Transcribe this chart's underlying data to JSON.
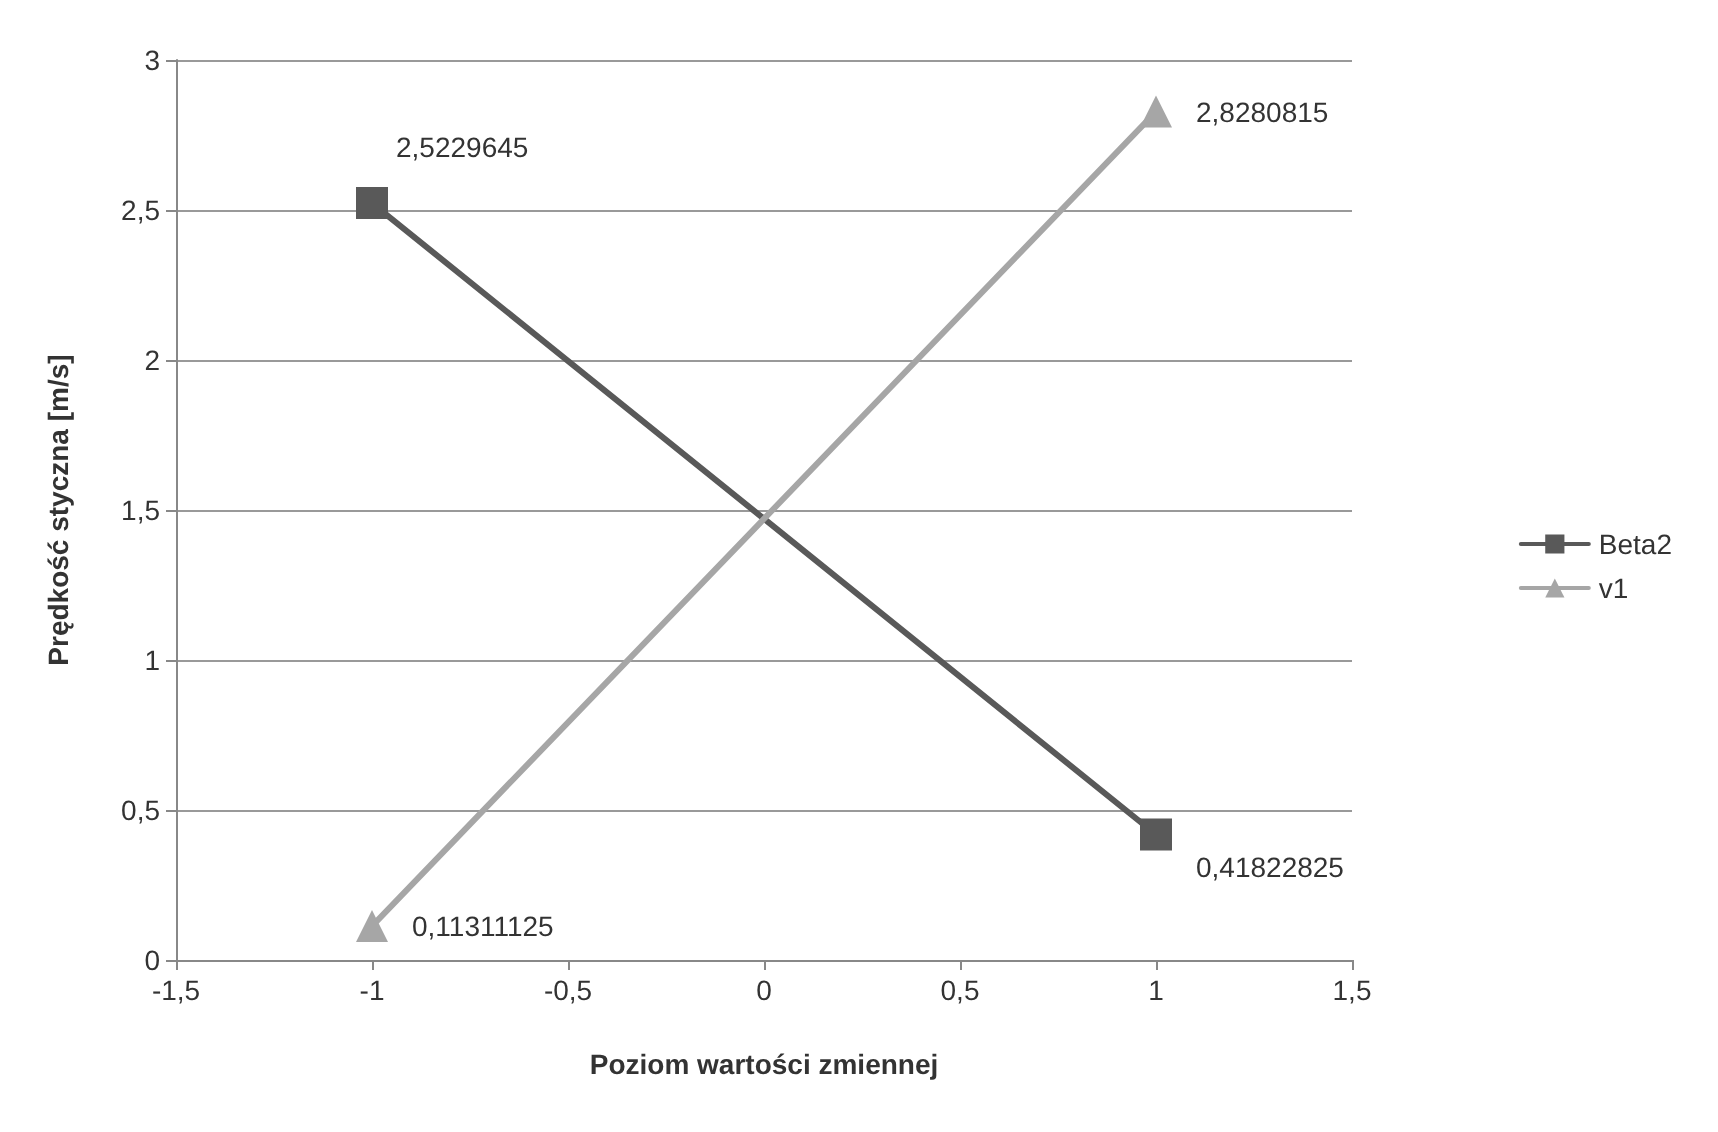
{
  "chart_data": {
    "type": "line",
    "xlabel": "Poziom wartości zmiennej",
    "ylabel": "Prędkość styczna [m/s]",
    "x": [
      -1,
      1
    ],
    "series": [
      {
        "name": "Beta2",
        "color": "#595959",
        "marker": "square",
        "values": [
          2.5229645,
          0.41822825
        ],
        "value_labels": [
          "2,5229645",
          "0,41822825"
        ]
      },
      {
        "name": "v1",
        "color": "#a6a6a6",
        "marker": "triangle",
        "values": [
          0.11311125,
          2.8280815
        ],
        "value_labels": [
          "0,11311125",
          "2,8280815"
        ]
      }
    ],
    "xlim": [
      -1.5,
      1.5
    ],
    "xticks": [
      {
        "value": -1.5,
        "label": "-1,5"
      },
      -1,
      {
        "value": -0.5,
        "label": "-0,5"
      },
      0,
      {
        "value": 0.5,
        "label": "0,5"
      },
      1,
      {
        "value": 1.5,
        "label": "1,5"
      }
    ],
    "ylim": [
      0,
      3
    ],
    "yticks": [
      0,
      {
        "value": 0.5,
        "label": "0,5"
      },
      1,
      {
        "value": 1.5,
        "label": "1,5"
      },
      2,
      {
        "value": 2.5,
        "label": "2,5"
      },
      3
    ],
    "grid": "y",
    "legend": "right",
    "line_style": "solid"
  }
}
